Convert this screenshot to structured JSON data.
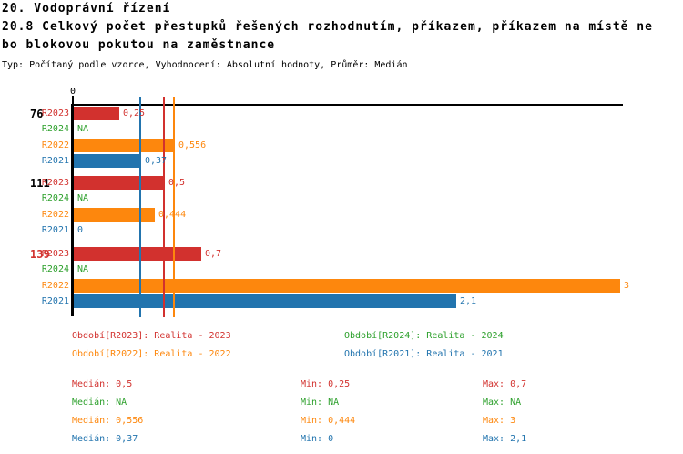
{
  "header": {
    "line1": "20. Vodoprávní řízení",
    "line2": "20.8 Celkový počet přestupků řešených rozhodnutím, příkazem, příkazem na místě ne",
    "line3": "bo blokovou pokutou na zaměstnance",
    "meta": "Typ: Počítaný podle vzorce, Vyhodnocení: Absolutní hodnoty, Průměr: Medián"
  },
  "colors": {
    "R2023": "#d2312e",
    "R2024": "#2da02c",
    "R2022": "#fd870d",
    "R2021": "#2274ae",
    "axis": "#000000",
    "group_label_default": "#000000",
    "group_label_highlight": "#d2312e"
  },
  "chart_data": {
    "type": "bar",
    "orientation": "horizontal",
    "xlim": [
      0,
      3
    ],
    "axis_zero_label": "0",
    "grid": false,
    "series_order": [
      "R2023",
      "R2024",
      "R2022",
      "R2021"
    ],
    "groups": [
      {
        "label": "76",
        "label_color": "#000000",
        "bars": [
          {
            "series": "R2023",
            "value": 0.25,
            "display": "0,25"
          },
          {
            "series": "R2024",
            "value": null,
            "display": "NA"
          },
          {
            "series": "R2022",
            "value": 0.556,
            "display": "0,556"
          },
          {
            "series": "R2021",
            "value": 0.37,
            "display": "0,37"
          }
        ]
      },
      {
        "label": "111",
        "label_color": "#000000",
        "bars": [
          {
            "series": "R2023",
            "value": 0.5,
            "display": "0,5"
          },
          {
            "series": "R2024",
            "value": null,
            "display": "NA"
          },
          {
            "series": "R2022",
            "value": 0.444,
            "display": "0,444"
          },
          {
            "series": "R2021",
            "value": 0,
            "display": "0"
          }
        ]
      },
      {
        "label": "139",
        "label_color": "#d2312e",
        "bars": [
          {
            "series": "R2023",
            "value": 0.7,
            "display": "0,7"
          },
          {
            "series": "R2024",
            "value": null,
            "display": "NA"
          },
          {
            "series": "R2022",
            "value": 3,
            "display": "3"
          },
          {
            "series": "R2021",
            "value": 2.1,
            "display": "2,1"
          }
        ]
      }
    ],
    "median_lines": [
      {
        "series": "R2021",
        "value": 0.37
      },
      {
        "series": "R2023",
        "value": 0.5
      },
      {
        "series": "R2022",
        "value": 0.556
      }
    ]
  },
  "legend": [
    {
      "series": "R2023",
      "label": "Období[R2023]: Realita - 2023"
    },
    {
      "series": "R2024",
      "label": "Období[R2024]: Realita - 2024"
    },
    {
      "series": "R2022",
      "label": "Období[R2022]: Realita - 2022"
    },
    {
      "series": "R2021",
      "label": "Období[R2021]: Realita - 2021"
    }
  ],
  "stats": [
    {
      "series": "R2023",
      "median_text": "Medián: 0,5",
      "min_text": "Min: 0,25",
      "max_text": "Max: 0,7"
    },
    {
      "series": "R2024",
      "median_text": "Medián: NA",
      "min_text": "Min: NA",
      "max_text": "Max: NA"
    },
    {
      "series": "R2022",
      "median_text": "Medián: 0,556",
      "min_text": "Min: 0,444",
      "max_text": "Max: 3"
    },
    {
      "series": "R2021",
      "median_text": "Medián: 0,37",
      "min_text": "Min: 0",
      "max_text": "Max: 2,1"
    }
  ]
}
